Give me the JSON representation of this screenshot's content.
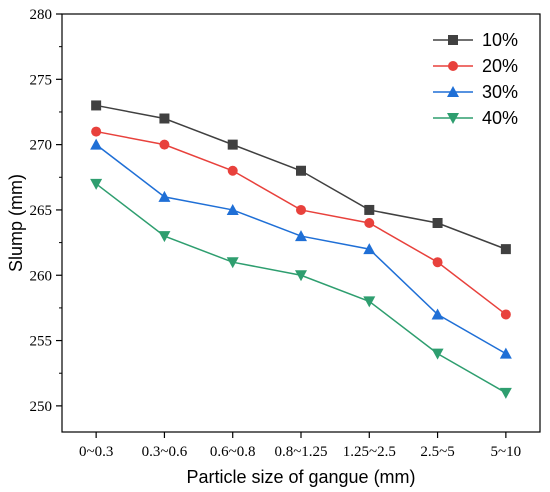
{
  "chart_data": {
    "type": "line",
    "title": "",
    "xlabel": "Particle size of gangue (mm)",
    "ylabel": "Slump (mm)",
    "categories": [
      "0~0.3",
      "0.3~0.6",
      "0.6~0.8",
      "0.8~1.25",
      "1.25~2.5",
      "2.5~5",
      "5~10"
    ],
    "ylim": [
      248,
      280
    ],
    "yticks": [
      250,
      255,
      260,
      265,
      270,
      275,
      280
    ],
    "grid": false,
    "legend_position": "top-right",
    "series": [
      {
        "name": "10%",
        "values": [
          273,
          272,
          270,
          268,
          265,
          264,
          262
        ],
        "color": "#404040",
        "marker": "square"
      },
      {
        "name": "20%",
        "values": [
          271,
          270,
          268,
          265,
          264,
          261,
          257
        ],
        "color": "#e8413c",
        "marker": "circle"
      },
      {
        "name": "30%",
        "values": [
          270,
          266,
          265,
          263,
          262,
          257,
          254
        ],
        "color": "#1f6fd6",
        "marker": "triangle-up"
      },
      {
        "name": "40%",
        "values": [
          267,
          263,
          261,
          260,
          258,
          254,
          251
        ],
        "color": "#2e9e6f",
        "marker": "triangle-down"
      }
    ]
  }
}
